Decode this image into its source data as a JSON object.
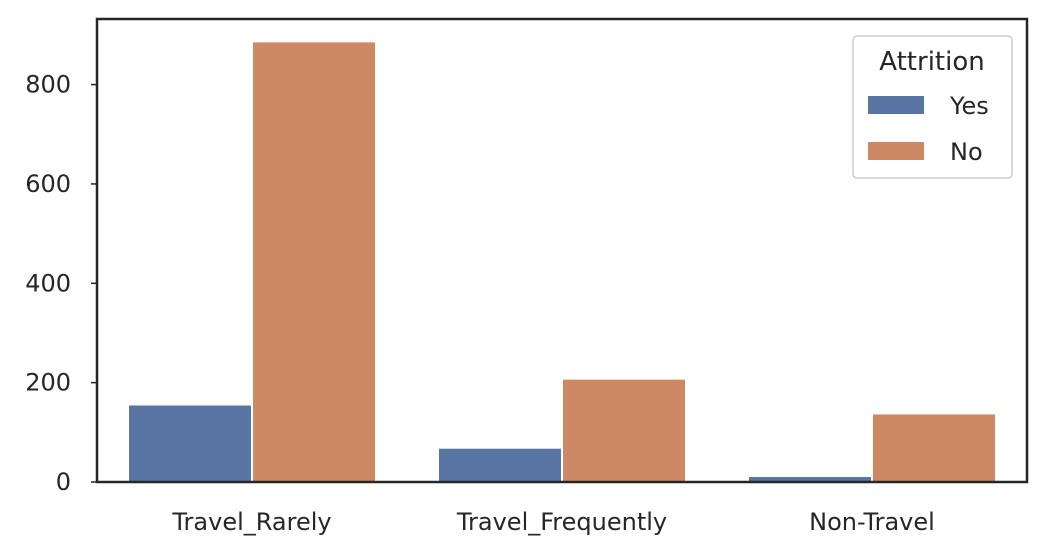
{
  "chart_data": {
    "type": "bar",
    "categories": [
      "Travel_Rarely",
      "Travel_Frequently",
      "Non-Travel"
    ],
    "series": [
      {
        "name": "Yes",
        "values": [
          156,
          69,
          12
        ],
        "color": "#5975a4"
      },
      {
        "name": "No",
        "values": [
          887,
          208,
          138
        ],
        "color": "#cc8963"
      }
    ],
    "title": "",
    "xlabel": "",
    "ylabel": "",
    "ylim": [
      0,
      932
    ],
    "yticks": [
      0,
      200,
      400,
      600,
      800
    ],
    "grid": false,
    "legend": {
      "title": "Attrition",
      "placement": "top-right"
    }
  }
}
